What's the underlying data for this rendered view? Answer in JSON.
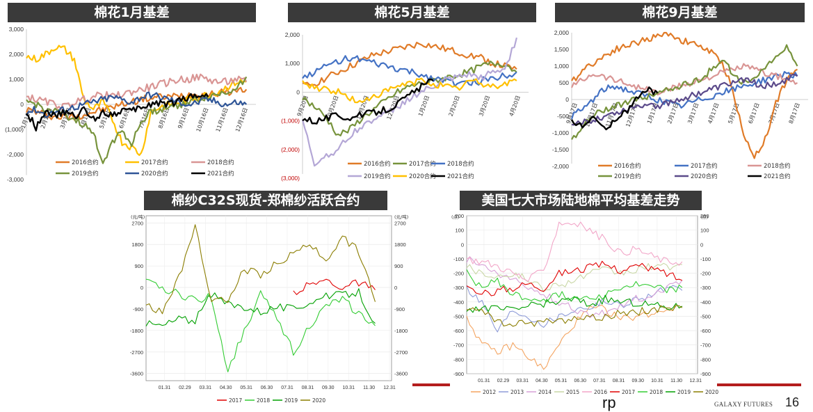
{
  "footer": {
    "brand": "GALAXY FUTURES",
    "page": "16",
    "stray_text": "rp"
  },
  "chart_data": [
    {
      "id": "c1",
      "type": "line",
      "title": "棉花1月基差",
      "ylim": [
        -3000,
        3000
      ],
      "yticks": [
        "3,000",
        "2,000",
        "1,000",
        "0",
        "(1,000)",
        "-2,000",
        "-3,000"
      ],
      "ytick_values": [
        3000,
        2000,
        1000,
        0,
        -1000,
        -2000,
        -3000
      ],
      "xticks": [
        "1月16日",
        "2月16日",
        "3月16日",
        "4月16日",
        "5月16日",
        "6月16日",
        "7月16日",
        "8月16日",
        "9月16日",
        "10月16日",
        "11月16日",
        "12月16日"
      ],
      "series": [
        {
          "name": "2016合约",
          "color": "#e07b28",
          "values": [
            -200,
            -300,
            -400,
            -500,
            -500,
            -500,
            -400,
            -300,
            -200,
            -100,
            0,
            100,
            200,
            250,
            300,
            300,
            350,
            400,
            400,
            400,
            450,
            500,
            550,
            600
          ]
        },
        {
          "name": "2017合约",
          "color": "#ffc000",
          "values": [
            1900,
            1800,
            2000,
            2300,
            2200,
            1800,
            200,
            -200,
            100,
            -600,
            -1500,
            -1700,
            -2000,
            -300,
            -100,
            0,
            100,
            200,
            300,
            400,
            500,
            700,
            900,
            900
          ]
        },
        {
          "name": "2018合约",
          "color": "#d99594",
          "values": [
            300,
            200,
            100,
            0,
            -100,
            100,
            200,
            300,
            400,
            300,
            400,
            500,
            600,
            700,
            800,
            900,
            1000,
            1000,
            1100,
            1000,
            900,
            900,
            1000,
            900
          ]
        },
        {
          "name": "2019合约",
          "color": "#77933c",
          "values": [
            100,
            0,
            -200,
            -300,
            -400,
            -600,
            -800,
            -1200,
            -2300,
            -1500,
            -1000,
            -1600,
            -700,
            -300,
            -200,
            -100,
            0,
            100,
            200,
            300,
            400,
            500,
            700,
            1100
          ]
        },
        {
          "name": "2020合约",
          "color": "#2f5597",
          "values": [
            -300,
            -200,
            -400,
            -300,
            -200,
            -100,
            0,
            100,
            200,
            300,
            200,
            100,
            300,
            400,
            300,
            200,
            100,
            0,
            100,
            200,
            100,
            0,
            100,
            0
          ]
        },
        {
          "name": "2021合约",
          "color": "#000000",
          "values": [
            -300,
            -900,
            -200,
            -500,
            -300,
            -500,
            -200,
            -600,
            -300,
            -400,
            -200,
            -300,
            -100,
            0,
            100,
            0,
            200,
            300,
            400,
            300
          ]
        }
      ]
    },
    {
      "id": "c2",
      "type": "line",
      "title": "棉花5月基差",
      "ylim": [
        -3000,
        2000
      ],
      "yticks": [
        "2,000",
        "1,000",
        "0",
        "(1,000)",
        "(2,000)",
        "(3,000)"
      ],
      "ytick_values": [
        2000,
        1000,
        0,
        -1000,
        -2000,
        -3000
      ],
      "xticks": [
        "9月20日",
        "10月20日",
        "11月20日",
        "12月20日",
        "1月20日",
        "2月20日",
        "3月20日",
        "4月20日"
      ],
      "series": [
        {
          "name": "2016合约",
          "color": "#e07b28",
          "values": [
            200,
            300,
            500,
            700,
            900,
            1100,
            1300,
            1400,
            1500,
            1600,
            1700,
            1600,
            1500,
            1400,
            1300,
            1200,
            1000,
            900,
            800
          ]
        },
        {
          "name": "2017合约",
          "color": "#77933c",
          "values": [
            -200,
            -500,
            -900,
            -1500,
            -1300,
            -900,
            -600,
            -300,
            0,
            200,
            300,
            400,
            500,
            600,
            700,
            900,
            1000,
            1000,
            700
          ]
        },
        {
          "name": "2018合约",
          "color": "#4472c4",
          "values": [
            500,
            700,
            900,
            1100,
            1200,
            1100,
            1000,
            900,
            800,
            700,
            600,
            500,
            400,
            300,
            300,
            400,
            500,
            600,
            700
          ]
        },
        {
          "name": "2019合约",
          "color": "#b4a7d6",
          "values": [
            -1000,
            -2500,
            -2200,
            -2000,
            -1500,
            -1200,
            -900,
            -800,
            -500,
            -200,
            0,
            200,
            400,
            500,
            600,
            500,
            700,
            800,
            1900
          ]
        },
        {
          "name": "2020合约",
          "color": "#ffc000",
          "values": [
            300,
            200,
            100,
            0,
            -200,
            -400,
            -100,
            0,
            200,
            300,
            400,
            300,
            200,
            100,
            400,
            300,
            200,
            300,
            400
          ]
        },
        {
          "name": "2021合约",
          "color": "#000000",
          "values": [
            -900,
            -1000,
            -900,
            -800,
            -900,
            -800,
            -700,
            -600,
            -400,
            -100,
            200,
            400
          ]
        }
      ]
    },
    {
      "id": "c3",
      "type": "line",
      "title": "棉花9月基差",
      "ylim": [
        -2000,
        2000
      ],
      "yticks": [
        "2,000",
        "1,500",
        "1,000",
        "500",
        "0",
        "-500",
        "-1,000",
        "-1,500",
        "-2,000"
      ],
      "ytick_values": [
        2000,
        1500,
        1000,
        500,
        0,
        -500,
        -1000,
        -1500,
        -2000
      ],
      "xticks": [
        "9月17日",
        "10月17日",
        "11月17日",
        "12月17日",
        "1月17日",
        "2月17日",
        "3月17日",
        "4月17日",
        "5月17日",
        "6月17日",
        "7月17日",
        "8月17日"
      ],
      "series": [
        {
          "name": "2016合约",
          "color": "#e07b28",
          "values": [
            500,
            900,
            1100,
            1300,
            1500,
            1600,
            1700,
            1800,
            1900,
            2000,
            1800,
            1700,
            1600,
            1400,
            1100,
            300,
            -1100,
            -1700,
            -1200,
            -100,
            600,
            900
          ]
        },
        {
          "name": "2017合约",
          "color": "#4472c4",
          "values": [
            -500,
            -300,
            0,
            300,
            400,
            300,
            200,
            100,
            0,
            -100,
            -200,
            -100,
            0,
            100,
            200,
            300,
            400,
            500,
            600,
            700,
            800,
            700
          ]
        },
        {
          "name": "2018合约",
          "color": "#d99594",
          "values": [
            400,
            600,
            800,
            700,
            600,
            500,
            400,
            300,
            200,
            300,
            400,
            500,
            600,
            700,
            800,
            900,
            1000,
            900,
            800,
            700,
            600,
            500
          ]
        },
        {
          "name": "2019合约",
          "color": "#77933c",
          "values": [
            -1200,
            -800,
            -500,
            -300,
            -200,
            -100,
            0,
            100,
            200,
            300,
            400,
            500,
            600,
            900,
            1200,
            800,
            500,
            600,
            1000,
            1200,
            1600,
            1000
          ]
        },
        {
          "name": "2020合约",
          "color": "#5b4a8a",
          "values": [
            -800,
            -700,
            -600,
            -500,
            -400,
            -300,
            -200,
            -100,
            -200,
            -100,
            0,
            100,
            200,
            300,
            400,
            500,
            600,
            500,
            400,
            500,
            600,
            700
          ]
        },
        {
          "name": "2021合约",
          "color": "#000000",
          "values": [
            -700,
            -800,
            -500,
            -900,
            -600,
            -400,
            0,
            300,
            200
          ]
        }
      ]
    },
    {
      "id": "c4",
      "type": "line",
      "title": "棉纱C32S现货-郑棉纱活跃合约",
      "unit_left": "(元/吨)",
      "unit_right": "(元/吨)",
      "ylim": [
        -3900,
        3000
      ],
      "yticks": [
        "2700",
        "1800",
        "900",
        "0",
        "-900",
        "-1800",
        "-2700",
        "-3600"
      ],
      "ytick_values": [
        2700,
        1800,
        900,
        0,
        -900,
        -1800,
        -2700,
        -3600
      ],
      "xticks": [
        "01.31",
        "02.29",
        "03.31",
        "04.30",
        "05.31",
        "06.30",
        "07.31",
        "08.31",
        "09.30",
        "10.31",
        "11.30",
        "12.31"
      ],
      "series": [
        {
          "name": "2017",
          "color": "#e00000",
          "values": [
            null,
            null,
            null,
            null,
            null,
            null,
            null,
            null,
            null,
            -200,
            100,
            300,
            0,
            200,
            -100
          ]
        },
        {
          "name": "2018",
          "color": "#33cc33",
          "values": [
            200,
            0,
            -300,
            -500,
            -400,
            -3500,
            -1800,
            -300,
            -1200,
            -2700,
            -1600,
            -800,
            -500,
            -1100,
            -1600
          ]
        },
        {
          "name": "2019",
          "color": "#00a000",
          "values": [
            -1500,
            -1600,
            -1300,
            -1400,
            -300,
            -700,
            -800,
            -1000,
            -800,
            -900,
            -600,
            -400,
            -300,
            -200,
            -1500
          ]
        },
        {
          "name": "2020",
          "color": "#8b7d00",
          "values": [
            -700,
            -1100,
            400,
            2600,
            -500,
            -600,
            800,
            500,
            1000,
            1400,
            1800,
            1200,
            2100,
            1500,
            -600
          ]
        }
      ]
    },
    {
      "id": "c5",
      "type": "line",
      "title": "美国七大市场陆地棉平均基差走势",
      "unit_left": "(点)",
      "unit_right": "(点)",
      "ylim": [
        -900,
        200
      ],
      "yticks": [
        "200",
        "100",
        "0",
        "-100",
        "-200",
        "-300",
        "-400",
        "-500",
        "-600",
        "-700",
        "-800",
        "-900"
      ],
      "ytick_values": [
        200,
        100,
        0,
        -100,
        -200,
        -300,
        -400,
        -500,
        -600,
        -700,
        -800,
        -900
      ],
      "xticks": [
        "01.31",
        "02.29",
        "03.31",
        "04.30",
        "05.31",
        "06.30",
        "07.31",
        "08.31",
        "09.30",
        "10.31",
        "11.30",
        "12.31"
      ],
      "series": [
        {
          "name": "2012",
          "color": "#f4a460",
          "values": [
            -500,
            -700,
            -750,
            -700,
            -780,
            -870,
            -700,
            -550,
            -450,
            -450,
            -520,
            -500,
            -480,
            -450,
            -430
          ]
        },
        {
          "name": "2013",
          "color": "#8e9bd8",
          "values": [
            -300,
            -400,
            -600,
            -450,
            -500,
            -550,
            -500,
            -450,
            -430,
            -400,
            -420,
            -380,
            -350,
            -300,
            -320
          ]
        },
        {
          "name": "2014",
          "color": "#d7a0d7",
          "values": [
            -100,
            -150,
            -200,
            -250,
            -300,
            -350,
            -400,
            -450,
            -500,
            -480,
            -420,
            -380,
            -350,
            -300,
            -250
          ]
        },
        {
          "name": "2015",
          "color": "#c9d7a6",
          "values": [
            -150,
            -200,
            -220,
            -200,
            -250,
            -300,
            -280,
            -250,
            -200,
            -180,
            -200,
            -180,
            -150,
            -160,
            -140
          ]
        },
        {
          "name": "2016",
          "color": "#f2a6c8",
          "values": [
            -100,
            -120,
            -150,
            -200,
            -250,
            -180,
            150,
            150,
            100,
            30,
            -60,
            -30,
            -80,
            -120,
            -120
          ]
        },
        {
          "name": "2017",
          "color": "#e00000",
          "values": [
            -300,
            -350,
            -320,
            -300,
            -270,
            -300,
            -200,
            -180,
            -160,
            -140,
            -180,
            -150,
            -170,
            -200,
            -250
          ]
        },
        {
          "name": "2018",
          "color": "#33cc33",
          "values": [
            -200,
            -300,
            -250,
            -350,
            -380,
            -380,
            -350,
            -370,
            -360,
            -350,
            -300,
            -280,
            -300,
            -320,
            -300
          ]
        },
        {
          "name": "2019",
          "color": "#00a000",
          "values": [
            -450,
            -440,
            -450,
            -460,
            -430,
            -410,
            -400,
            -380,
            -420,
            -380,
            -400,
            -410,
            -420,
            -440,
            -430
          ]
        },
        {
          "name": "2020",
          "color": "#8b7d00",
          "values": [
            -450,
            -450,
            -550,
            -560,
            -550,
            -540,
            -530,
            -520,
            -510,
            -500,
            -480,
            -470,
            -450,
            -440,
            -440
          ]
        }
      ]
    }
  ]
}
